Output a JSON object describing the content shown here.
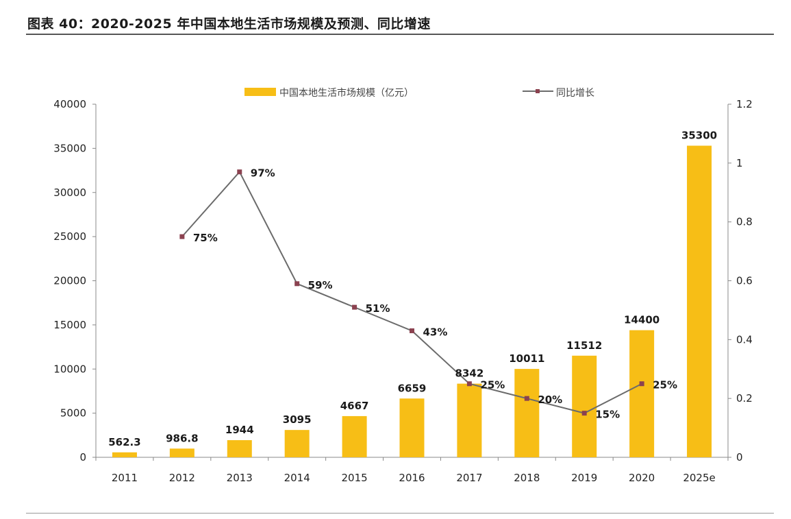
{
  "figure_title": "图表 40：2020-2025 年中国本地生活市场规模及预测、同比增速",
  "colors": {
    "bar": "#F7BE16",
    "line": "#6B6B6B",
    "marker": "#8B4250",
    "axis": "#888888"
  },
  "chart_data": {
    "type": "bar+line",
    "title": "图表 40：2020-2025 年中国本地生活市场规模及预测、同比增速",
    "categories": [
      "2011",
      "2012",
      "2013",
      "2014",
      "2015",
      "2016",
      "2017",
      "2018",
      "2019",
      "2020",
      "2025e"
    ],
    "series": [
      {
        "name": "中国本地生活市场规模（亿元）",
        "type": "bar",
        "axis": "left",
        "values": [
          562.3,
          986.8,
          1944,
          3095,
          4667,
          6659,
          8342,
          10011,
          11512,
          14400,
          35300
        ],
        "labels": [
          "562.3",
          "986.8",
          "1944",
          "3095",
          "4667",
          "6659",
          "8342",
          "10011",
          "11512",
          "14400",
          "35300"
        ]
      },
      {
        "name": "同比增长",
        "type": "line",
        "axis": "right",
        "segments": [
          {
            "points": [
              [
                1,
                0.75
              ],
              [
                2,
                0.97
              ],
              [
                3,
                0.59
              ],
              [
                4,
                0.51
              ],
              [
                5,
                0.43
              ],
              [
                6,
                0.25
              ],
              [
                7,
                0.2
              ],
              [
                8,
                0.15
              ],
              [
                9,
                0.25
              ]
            ]
          }
        ],
        "labels": [
          "75%",
          "97%",
          "59%",
          "51%",
          "43%",
          "25%",
          "20%",
          "15%",
          "25%"
        ]
      }
    ],
    "y_left": {
      "min": 0,
      "max": 40000,
      "ticks": [
        "0",
        "5000",
        "10000",
        "15000",
        "20000",
        "25000",
        "30000",
        "35000",
        "40000"
      ]
    },
    "y_right": {
      "min": 0,
      "max": 1.2,
      "ticks": [
        "0",
        "0.2",
        "0.4",
        "0.6",
        "0.8",
        "1",
        "1.2"
      ]
    },
    "legend": [
      "中国本地生活市场规模（亿元）",
      "同比增长"
    ],
    "legend_position": "top",
    "grid": false
  }
}
